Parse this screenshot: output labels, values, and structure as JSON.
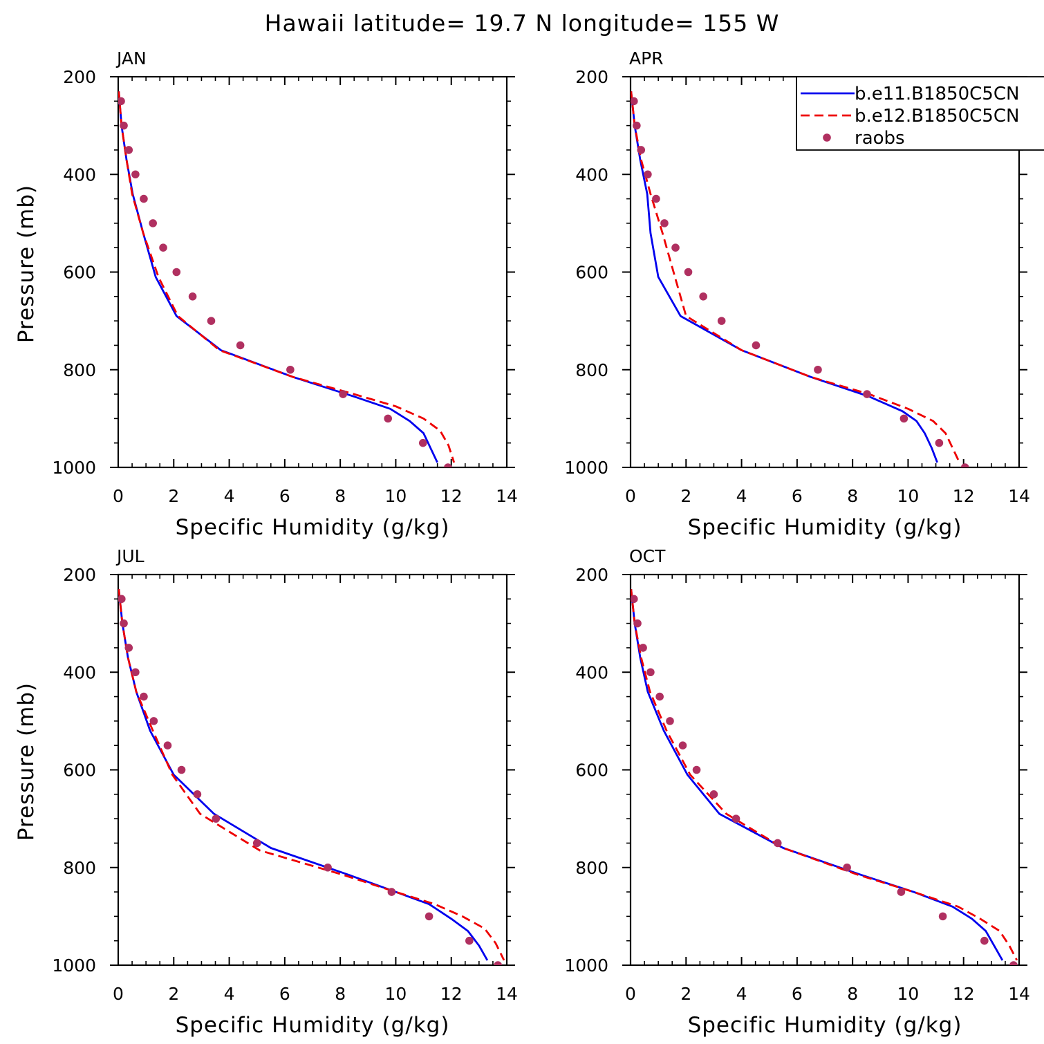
{
  "title": "Hawaii  latitude= 19.7 N longitude= 155 W",
  "legend": {
    "entries": [
      {
        "label": "b.e11.B1850C5CN",
        "color": "#0000ee",
        "style": "solid"
      },
      {
        "label": "b.e12.B1850C5CN",
        "color": "#ee0000",
        "style": "dashed"
      },
      {
        "label": "raobs",
        "color": "#b03060",
        "style": "dots"
      }
    ]
  },
  "chart_data": [
    {
      "type": "line",
      "panel": "JAN",
      "xlabel": "Specific Humidity (g/kg)",
      "ylabel": "Pressure (mb)",
      "xlim": [
        0,
        14
      ],
      "ylim": [
        200,
        1000
      ],
      "y_inverted": true,
      "xticks": [
        "0",
        "2",
        "4",
        "6",
        "8",
        "10",
        "12",
        "14"
      ],
      "yticks": [
        "200",
        "400",
        "600",
        "800",
        "1000"
      ],
      "series": [
        {
          "name": "b.e11.B1850C5CN",
          "color": "#0000ee",
          "style": "solid",
          "x": [
            0.02,
            0.12,
            0.3,
            0.52,
            0.9,
            1.35,
            2.1,
            3.7,
            6.3,
            8.5,
            9.8,
            10.5,
            11.0,
            11.25,
            11.5
          ],
          "y": [
            230,
            300,
            370,
            440,
            520,
            610,
            690,
            760,
            815,
            855,
            880,
            905,
            930,
            960,
            990
          ]
        },
        {
          "name": "b.e12.B1850C5CN",
          "color": "#ee0000",
          "style": "dashed",
          "x": [
            0.02,
            0.12,
            0.3,
            0.5,
            0.9,
            1.45,
            2.15,
            3.65,
            6.3,
            8.5,
            10.0,
            11.0,
            11.6,
            11.9,
            12.1
          ],
          "y": [
            230,
            300,
            370,
            440,
            520,
            610,
            690,
            760,
            815,
            850,
            875,
            900,
            925,
            955,
            990
          ]
        },
        {
          "name": "raobs",
          "color": "#b03060",
          "style": "dots",
          "x": [
            0.1,
            0.2,
            0.38,
            0.62,
            0.92,
            1.25,
            1.62,
            2.1,
            2.68,
            3.35,
            4.4,
            6.2,
            8.1,
            9.72,
            10.98,
            11.88
          ],
          "y": [
            250,
            300,
            350,
            400,
            450,
            500,
            550,
            600,
            650,
            700,
            750,
            800,
            850,
            900,
            950,
            1000
          ]
        }
      ]
    },
    {
      "type": "line",
      "panel": "APR",
      "xlabel": "Specific Humidity (g/kg)",
      "ylabel": "",
      "xlim": [
        0,
        14
      ],
      "ylim": [
        200,
        1000
      ],
      "y_inverted": true,
      "xticks": [
        "0",
        "2",
        "4",
        "6",
        "8",
        "10",
        "12",
        "14"
      ],
      "yticks": [
        "200",
        "400",
        "600",
        "800",
        "1000"
      ],
      "series": [
        {
          "name": "b.e11.B1850C5CN",
          "color": "#0000ee",
          "style": "solid",
          "x": [
            0.02,
            0.15,
            0.35,
            0.6,
            0.72,
            1.0,
            1.8,
            4.0,
            6.5,
            8.6,
            9.8,
            10.3,
            10.6,
            10.85,
            11.05
          ],
          "y": [
            230,
            300,
            370,
            440,
            520,
            610,
            690,
            760,
            815,
            855,
            885,
            905,
            930,
            960,
            990
          ]
        },
        {
          "name": "b.e12.B1850C5CN",
          "color": "#ee0000",
          "style": "dashed",
          "x": [
            0.02,
            0.15,
            0.38,
            0.72,
            1.15,
            1.6,
            2.0,
            4.0,
            6.5,
            8.6,
            10.0,
            10.9,
            11.35,
            11.6,
            11.85
          ],
          "y": [
            230,
            300,
            370,
            440,
            520,
            610,
            690,
            760,
            815,
            850,
            880,
            905,
            930,
            960,
            990
          ]
        },
        {
          "name": "raobs",
          "color": "#b03060",
          "style": "dots",
          "x": [
            0.12,
            0.22,
            0.38,
            0.62,
            0.92,
            1.22,
            1.62,
            2.08,
            2.62,
            3.28,
            4.52,
            6.75,
            8.52,
            9.85,
            11.12,
            12.05
          ],
          "y": [
            250,
            300,
            350,
            400,
            450,
            500,
            550,
            600,
            650,
            700,
            750,
            800,
            850,
            900,
            950,
            1000
          ]
        }
      ]
    },
    {
      "type": "line",
      "panel": "JUL",
      "xlabel": "Specific Humidity (g/kg)",
      "ylabel": "Pressure (mb)",
      "xlim": [
        0,
        14
      ],
      "ylim": [
        200,
        1000
      ],
      "y_inverted": true,
      "xticks": [
        "0",
        "2",
        "4",
        "6",
        "8",
        "10",
        "12",
        "14"
      ],
      "yticks": [
        "200",
        "400",
        "600",
        "800",
        "1000"
      ],
      "series": [
        {
          "name": "b.e11.B1850C5CN",
          "color": "#0000ee",
          "style": "solid",
          "x": [
            0.02,
            0.15,
            0.35,
            0.65,
            1.15,
            2.0,
            3.45,
            5.5,
            8.3,
            10.0,
            11.2,
            12.0,
            12.6,
            13.0,
            13.3
          ],
          "y": [
            230,
            300,
            370,
            440,
            520,
            610,
            690,
            760,
            815,
            850,
            875,
            905,
            930,
            960,
            990
          ]
        },
        {
          "name": "b.e12.B1850C5CN",
          "color": "#ee0000",
          "style": "dashed",
          "x": [
            0.02,
            0.15,
            0.35,
            0.65,
            1.25,
            1.95,
            2.95,
            5.1,
            8.1,
            10.0,
            11.4,
            12.4,
            13.2,
            13.6,
            13.9
          ],
          "y": [
            230,
            300,
            370,
            440,
            520,
            610,
            690,
            765,
            815,
            850,
            875,
            900,
            925,
            955,
            990
          ]
        },
        {
          "name": "raobs",
          "color": "#b03060",
          "style": "dots",
          "x": [
            0.12,
            0.2,
            0.38,
            0.62,
            0.92,
            1.28,
            1.78,
            2.28,
            2.85,
            3.52,
            5.0,
            7.55,
            9.85,
            11.2,
            12.65,
            13.68
          ],
          "y": [
            250,
            300,
            350,
            400,
            450,
            500,
            550,
            600,
            650,
            700,
            750,
            800,
            850,
            900,
            950,
            1000
          ]
        }
      ]
    },
    {
      "type": "line",
      "panel": "OCT",
      "xlabel": "Specific Humidity (g/kg)",
      "ylabel": "",
      "xlim": [
        0,
        14
      ],
      "ylim": [
        200,
        1000
      ],
      "y_inverted": true,
      "xticks": [
        "0",
        "2",
        "4",
        "6",
        "8",
        "10",
        "12",
        "14"
      ],
      "yticks": [
        "200",
        "400",
        "600",
        "800",
        "1000"
      ],
      "series": [
        {
          "name": "b.e11.B1850C5CN",
          "color": "#0000ee",
          "style": "solid",
          "x": [
            0.02,
            0.15,
            0.35,
            0.62,
            1.2,
            2.05,
            3.2,
            5.5,
            8.3,
            10.2,
            11.6,
            12.3,
            12.8,
            13.1,
            13.4
          ],
          "y": [
            230,
            300,
            370,
            440,
            520,
            610,
            690,
            760,
            815,
            850,
            880,
            905,
            930,
            960,
            990
          ]
        },
        {
          "name": "b.e12.B1850C5CN",
          "color": "#ee0000",
          "style": "dashed",
          "x": [
            0.02,
            0.15,
            0.38,
            0.7,
            1.3,
            2.15,
            3.45,
            5.5,
            8.2,
            10.2,
            11.8,
            12.6,
            13.3,
            13.65,
            13.92
          ],
          "y": [
            230,
            300,
            370,
            440,
            520,
            610,
            690,
            760,
            815,
            850,
            880,
            905,
            930,
            960,
            990
          ]
        },
        {
          "name": "raobs",
          "color": "#b03060",
          "style": "dots",
          "x": [
            0.12,
            0.25,
            0.45,
            0.72,
            1.05,
            1.42,
            1.88,
            2.38,
            3.0,
            3.8,
            5.3,
            7.8,
            9.75,
            11.25,
            12.75,
            13.8
          ],
          "y": [
            250,
            300,
            350,
            400,
            450,
            500,
            550,
            600,
            650,
            700,
            750,
            800,
            850,
            900,
            950,
            1000
          ]
        }
      ]
    }
  ]
}
